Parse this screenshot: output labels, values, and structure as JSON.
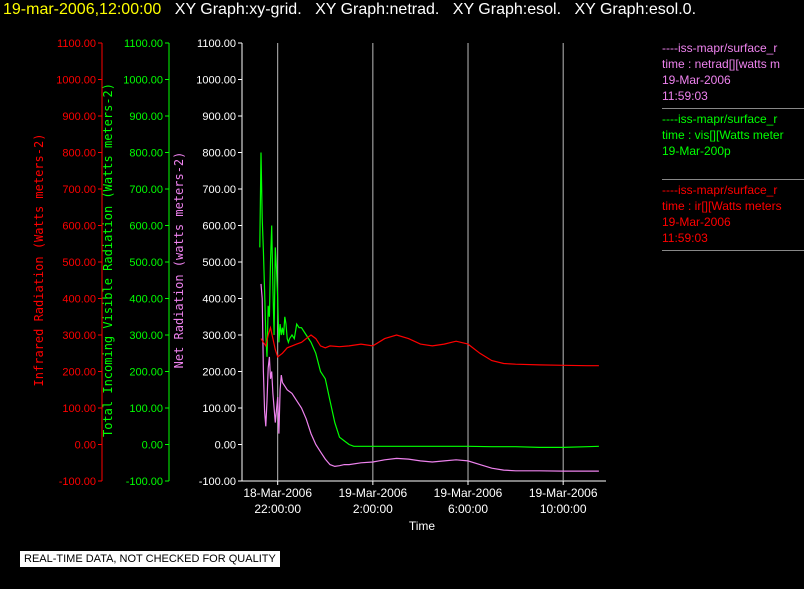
{
  "header": {
    "timestamp": "19-mar-2006,12:00:00",
    "titles": [
      "XY Graph:xy-grid.",
      "XY Graph:netrad.",
      "XY Graph:esol.",
      "XY Graph:esol.0."
    ]
  },
  "colors": {
    "ir": "#ff0000",
    "vis": "#00ff00",
    "net": "#ee82ee",
    "axis": "#ffffff"
  },
  "legend": [
    {
      "color": "#ee82ee",
      "lines": [
        "----iss-mapr/surface_r",
        "time : netrad[][watts m",
        "19-Mar-2006",
        "11:59:03"
      ]
    },
    {
      "color": "#00ff00",
      "lines": [
        "----iss-mapr/surface_r",
        "time : vis[][Watts meter",
        "19-Mar-200p"
      ]
    },
    {
      "color": "#ff0000",
      "lines": [
        "----iss-mapr/surface_r",
        "time : ir[][Watts meters",
        "19-Mar-2006",
        "11:59:03"
      ]
    }
  ],
  "footnote": "REAL-TIME DATA, NOT CHECKED FOR QUALITY",
  "chart_data": {
    "type": "line",
    "xlabel": "Time",
    "x_ticks": [
      {
        "x": 22,
        "line1": "18-Mar-2006",
        "line2": "22:00:00"
      },
      {
        "x": 26,
        "line1": "19-Mar-2006",
        "line2": "2:00:00"
      },
      {
        "x": 30,
        "line1": "19-Mar-2006",
        "line2": "6:00:00"
      },
      {
        "x": 34,
        "line1": "19-Mar-2006",
        "line2": "10:00:00"
      }
    ],
    "x_unit": "hours since 18-Mar-2006 00:00",
    "xlim": [
      20.5,
      35.8
    ],
    "ylim": [
      -100,
      1100
    ],
    "y_ticks": [
      "-100.00",
      "0.00",
      "100.00",
      "200.00",
      "300.00",
      "400.00",
      "500.00",
      "600.00",
      "700.00",
      "800.00",
      "900.00",
      "1000.00",
      "1100.00"
    ],
    "y_axes": [
      {
        "label": "Infrared Radiation (Watts meters-2)",
        "color": "#ff0000"
      },
      {
        "label": "Total Incoming Visible Radiation (Watts meters-2)",
        "color": "#00ff00"
      },
      {
        "label": "Net Radiation (watts meters-2)",
        "color": "#ee82ee"
      }
    ],
    "grid_x": true,
    "series": [
      {
        "key": "vis",
        "color": "#00ff00",
        "x": [
          21.25,
          21.3,
          21.35,
          21.4,
          21.45,
          21.5,
          21.55,
          21.6,
          21.65,
          21.7,
          21.75,
          21.8,
          21.85,
          21.9,
          21.95,
          22.0,
          22.05,
          22.1,
          22.15,
          22.2,
          22.25,
          22.3,
          22.35,
          22.4,
          22.45,
          22.5,
          22.6,
          22.7,
          22.8,
          22.9,
          23.0,
          23.2,
          23.4,
          23.6,
          23.8,
          24.0,
          24.2,
          24.4,
          24.6,
          24.8,
          25.0,
          25.2,
          25.4,
          25.6,
          25.8,
          26.0,
          26.2,
          26.5,
          27,
          28,
          29,
          30,
          31,
          32,
          33,
          34,
          35,
          35.5
        ],
        "y": [
          540,
          800,
          620,
          530,
          420,
          300,
          240,
          380,
          350,
          500,
          600,
          430,
          300,
          540,
          480,
          400,
          280,
          330,
          300,
          320,
          300,
          350,
          330,
          290,
          280,
          290,
          300,
          290,
          330,
          320,
          320,
          300,
          280,
          250,
          200,
          180,
          120,
          60,
          20,
          10,
          0,
          -5,
          -5,
          -5,
          -5,
          -5,
          -5,
          -5,
          -5,
          -5,
          -5,
          -5,
          -6,
          -6,
          -8,
          -8,
          -6,
          -5
        ]
      },
      {
        "key": "net",
        "color": "#ee82ee",
        "x": [
          21.3,
          21.35,
          21.4,
          21.45,
          21.5,
          21.55,
          21.6,
          21.65,
          21.7,
          21.75,
          21.8,
          21.9,
          22.0,
          22.05,
          22.1,
          22.15,
          22.2,
          22.3,
          22.4,
          22.6,
          22.8,
          23.0,
          23.2,
          23.4,
          23.6,
          23.8,
          24.0,
          24.2,
          24.4,
          24.6,
          24.8,
          25.0,
          25.5,
          26.0,
          26.5,
          27.0,
          27.5,
          28.0,
          28.5,
          29.0,
          29.5,
          30.0,
          30.5,
          31.0,
          31.5,
          32,
          33,
          34,
          35,
          35.5
        ],
        "y": [
          440,
          400,
          200,
          90,
          50,
          120,
          210,
          240,
          180,
          200,
          140,
          60,
          130,
          30,
          150,
          190,
          170,
          160,
          150,
          140,
          120,
          100,
          70,
          30,
          0,
          -20,
          -40,
          -55,
          -60,
          -58,
          -55,
          -55,
          -50,
          -48,
          -42,
          -38,
          -40,
          -45,
          -48,
          -45,
          -42,
          -45,
          -55,
          -65,
          -70,
          -72,
          -72,
          -73,
          -73,
          -73
        ]
      },
      {
        "key": "ir",
        "color": "#ff0000",
        "x": [
          21.3,
          21.4,
          21.5,
          21.6,
          21.7,
          21.8,
          21.9,
          22.0,
          22.2,
          22.4,
          22.6,
          22.8,
          23.0,
          23.2,
          23.4,
          23.6,
          23.8,
          24.0,
          24.2,
          24.6,
          25.0,
          25.5,
          26.0,
          26.5,
          27.0,
          27.5,
          28.0,
          28.5,
          29.0,
          29.5,
          30.0,
          30.5,
          31.0,
          31.5,
          32,
          33,
          34,
          35,
          35.5
        ],
        "y": [
          290,
          280,
          270,
          300,
          320,
          290,
          260,
          240,
          250,
          265,
          270,
          275,
          280,
          290,
          300,
          290,
          270,
          265,
          270,
          268,
          270,
          275,
          270,
          290,
          300,
          290,
          275,
          270,
          275,
          283,
          275,
          250,
          230,
          222,
          220,
          218,
          217,
          216,
          216
        ]
      }
    ]
  }
}
